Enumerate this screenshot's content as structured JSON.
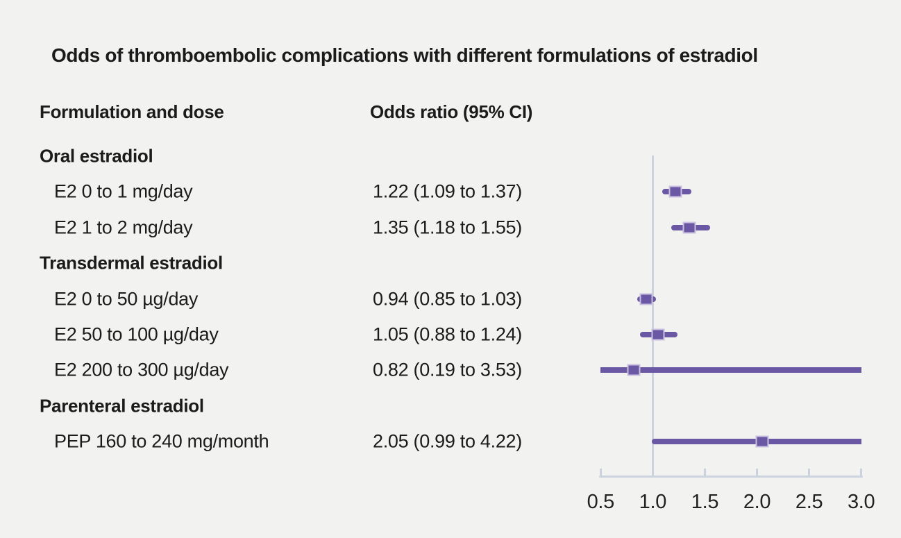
{
  "title": "Odds of thromboembolic complications with different formulations of estradiol",
  "columns": {
    "formulation": "Formulation and dose",
    "odds_ratio": "Odds ratio (95% CI)"
  },
  "colors": {
    "background": "#f2f2f1",
    "text": "#1b1b1b",
    "marker_purple": "#6a58a4",
    "marker_border": "#c9c0e0",
    "axis_gray": "#ccd3de"
  },
  "chart_data": {
    "type": "forest",
    "title": "Odds of thromboembolic complications with different formulations of estradiol",
    "xlabel": "Odds ratio",
    "xlim": [
      0.5,
      3.0
    ],
    "reference_line": 1.0,
    "ticks": [
      0.5,
      1.0,
      1.5,
      2.0,
      2.5,
      3.0
    ],
    "tick_labels": [
      "0.5",
      "1.0",
      "1.5",
      "2.0",
      "2.5",
      "3.0"
    ],
    "grid": false,
    "rows": [
      {
        "label": "Oral estradiol",
        "section": true,
        "or_text": null,
        "est": null,
        "lo": null,
        "hi": null
      },
      {
        "label": "E2 0 to 1 mg/day",
        "section": false,
        "or_text": "1.22 (1.09 to 1.37)",
        "est": 1.22,
        "lo": 1.09,
        "hi": 1.37
      },
      {
        "label": "E2 1 to 2 mg/day",
        "section": false,
        "or_text": "1.35 (1.18 to 1.55)",
        "est": 1.35,
        "lo": 1.18,
        "hi": 1.55
      },
      {
        "label": "Transdermal estradiol",
        "section": true,
        "or_text": null,
        "est": null,
        "lo": null,
        "hi": null
      },
      {
        "label": "E2 0 to 50 µg/day",
        "section": false,
        "or_text": "0.94 (0.85 to 1.03)",
        "est": 0.94,
        "lo": 0.85,
        "hi": 1.03
      },
      {
        "label": "E2 50 to 100 µg/day",
        "section": false,
        "or_text": "1.05 (0.88 to 1.24)",
        "est": 1.05,
        "lo": 0.88,
        "hi": 1.24
      },
      {
        "label": "E2 200 to 300 µg/day",
        "section": false,
        "or_text": "0.82 (0.19 to 3.53)",
        "est": 0.82,
        "lo": 0.19,
        "hi": 3.53
      },
      {
        "label": "Parenteral estradiol",
        "section": true,
        "or_text": null,
        "est": null,
        "lo": null,
        "hi": null
      },
      {
        "label": "PEP 160 to 240 mg/month",
        "section": false,
        "or_text": "2.05 (0.99 to 4.22)",
        "est": 2.05,
        "lo": 0.99,
        "hi": 4.22
      }
    ]
  }
}
